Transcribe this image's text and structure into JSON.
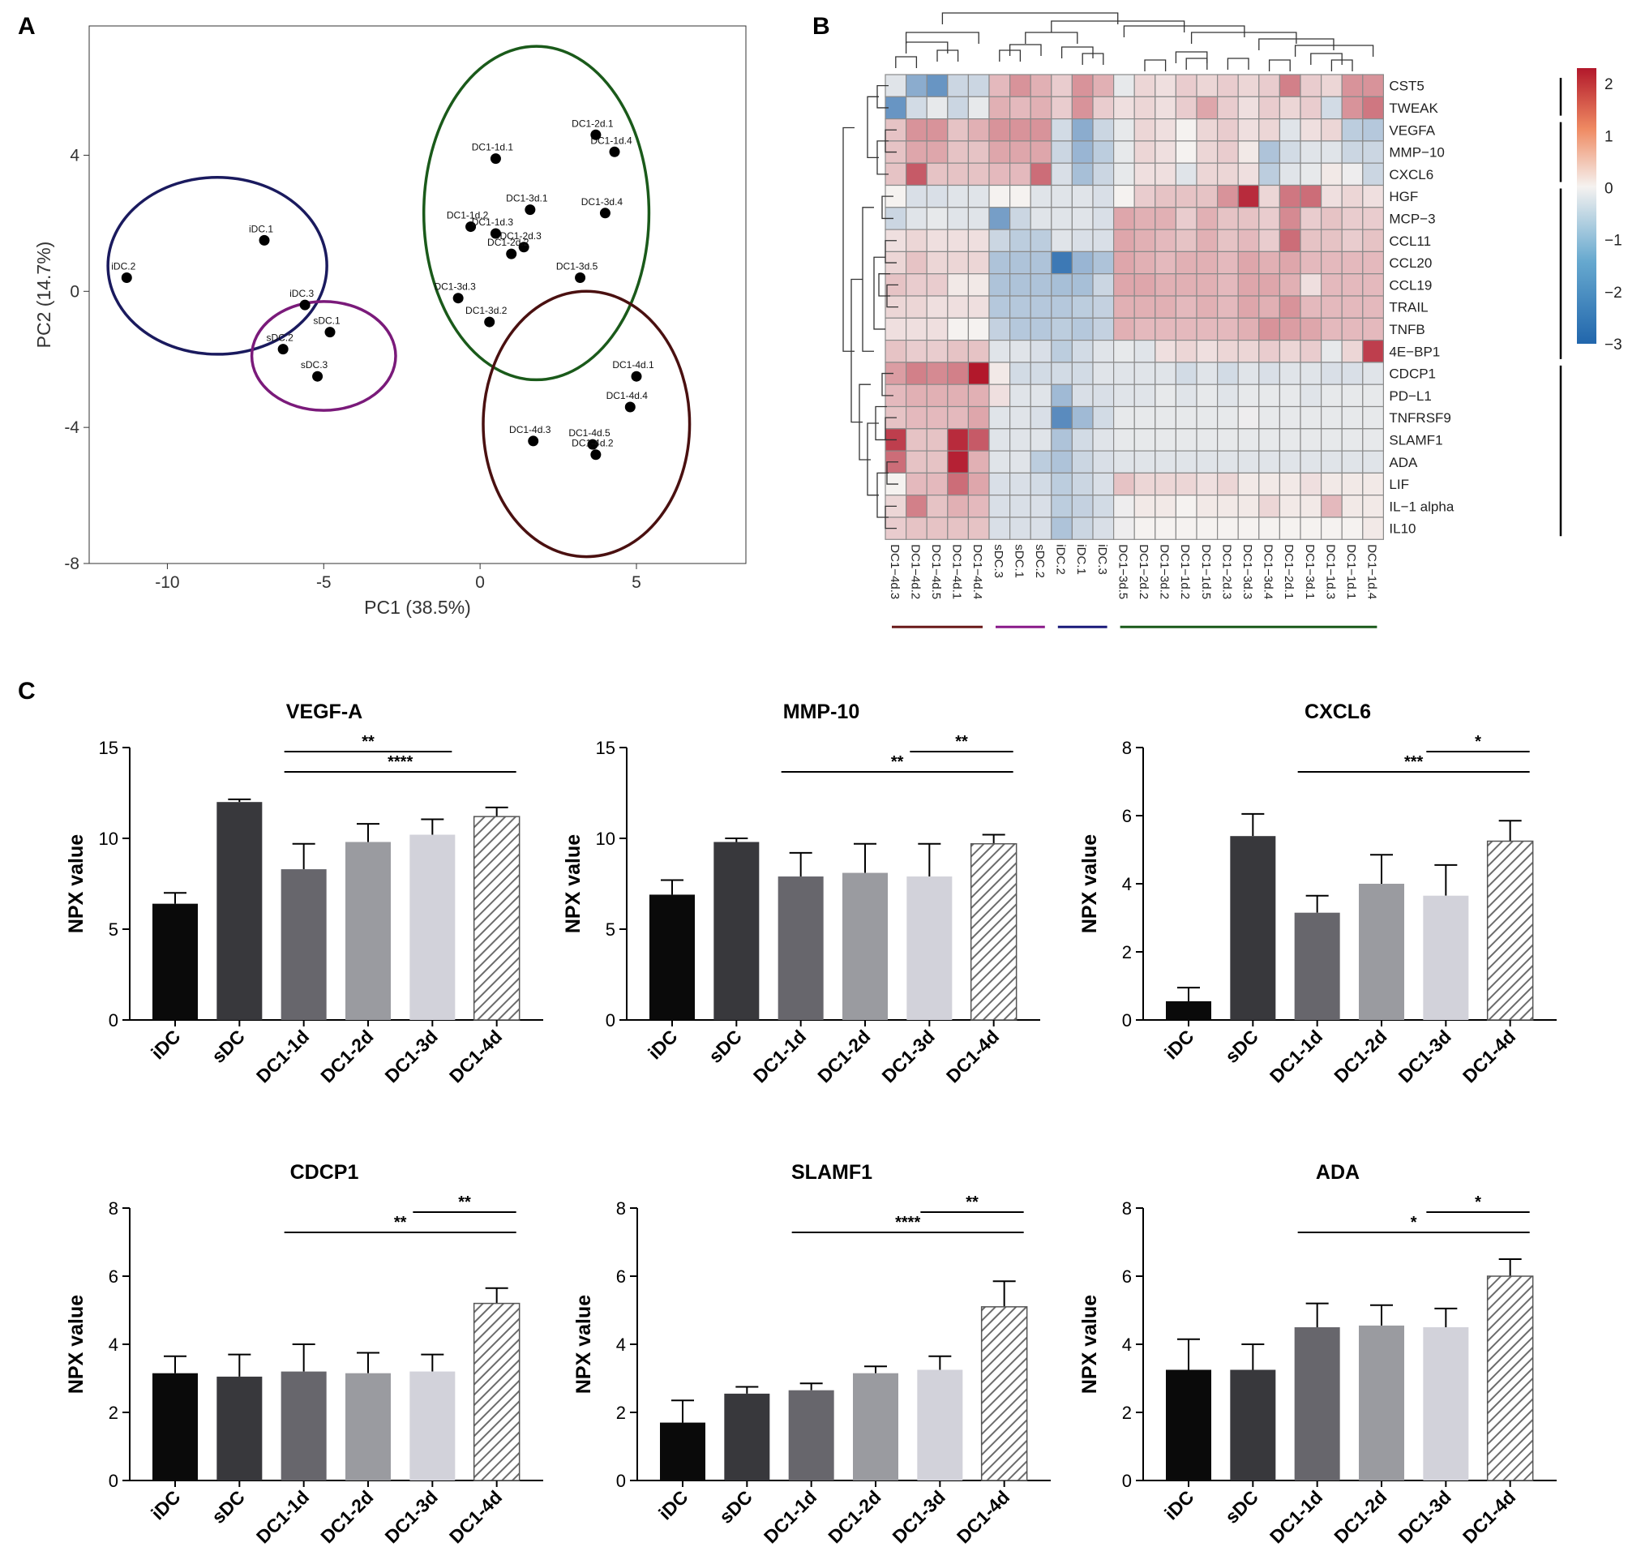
{
  "panel_labels": {
    "a": "A",
    "b": "B",
    "c": "C"
  },
  "chart_data": [
    {
      "id": "A",
      "type": "scatter",
      "xlabel": "PC1 (38.5%)",
      "ylabel": "PC2 (14.7%)",
      "xlim": [
        -12.5,
        8.5
      ],
      "ylim": [
        -8,
        7.8
      ],
      "xticks": [
        -10,
        -5,
        0,
        5
      ],
      "yticks": [
        -8,
        -4,
        0,
        4
      ],
      "points": [
        {
          "label": "iDC.2",
          "x": -11.3,
          "y": 0.4
        },
        {
          "label": "iDC.1",
          "x": -6.9,
          "y": 1.5
        },
        {
          "label": "iDC.3",
          "x": -5.6,
          "y": -0.4
        },
        {
          "label": "sDC.1",
          "x": -4.8,
          "y": -1.2
        },
        {
          "label": "sDC.2",
          "x": -6.3,
          "y": -1.7
        },
        {
          "label": "sDC.3",
          "x": -5.2,
          "y": -2.5
        },
        {
          "label": "DC1-1d.1",
          "x": 0.5,
          "y": 3.9
        },
        {
          "label": "DC1-1d.2",
          "x": -0.3,
          "y": 1.9
        },
        {
          "label": "DC1-1d.3",
          "x": 0.5,
          "y": 1.7
        },
        {
          "label": "DC1-1d.4",
          "x": 4.3,
          "y": 4.1
        },
        {
          "label": "DC1-2d.1",
          "x": 3.7,
          "y": 4.6
        },
        {
          "label": "DC1-2d.3",
          "x": 1.4,
          "y": 1.3
        },
        {
          "label": "DC1-2d.2",
          "x": 1.0,
          "y": 1.1
        },
        {
          "label": "DC1-3d.1",
          "x": 1.6,
          "y": 2.4
        },
        {
          "label": "DC1-3d.2",
          "x": 0.3,
          "y": -0.9
        },
        {
          "label": "DC1-3d.3",
          "x": -0.7,
          "y": -0.2
        },
        {
          "label": "DC1-3d.4",
          "x": 4.0,
          "y": 2.3
        },
        {
          "label": "DC1-3d.5",
          "x": 3.2,
          "y": 0.4
        },
        {
          "label": "DC1-4d.1",
          "x": 5.0,
          "y": -2.5
        },
        {
          "label": "DC1-4d.3",
          "x": 1.7,
          "y": -4.4
        },
        {
          "label": "DC1-4d.4",
          "x": 4.8,
          "y": -3.4
        },
        {
          "label": "DC1-4d.5",
          "x": 3.6,
          "y": -4.5
        },
        {
          "label": "DC1-4d.2",
          "x": 3.7,
          "y": -4.8
        }
      ],
      "ellipses": [
        {
          "group": "iDC",
          "color": "#1a1a5e",
          "cx": -8.4,
          "cy": 0.75,
          "rx": 3.5,
          "ry": 2.6
        },
        {
          "group": "sDC",
          "color": "#7a1a7a",
          "cx": -5.0,
          "cy": -1.9,
          "rx": 2.3,
          "ry": 1.6
        },
        {
          "group": "DC1-1d/2d/3d",
          "color": "#1a5a1a",
          "cx": 1.8,
          "cy": 2.3,
          "rx": 3.6,
          "ry": 4.9
        },
        {
          "group": "DC1-4d",
          "color": "#4a1010",
          "cx": 3.4,
          "cy": -3.9,
          "rx": 3.3,
          "ry": 3.9
        }
      ]
    },
    {
      "id": "B",
      "type": "heatmap",
      "colorbar": {
        "min": -3,
        "max": 2.3,
        "ticks": [
          2,
          1,
          0,
          -1,
          -2,
          -3
        ],
        "tick_labels": [
          "2",
          "1",
          "0",
          "−1",
          "−2",
          "−3"
        ]
      },
      "rows": [
        "CST5",
        "TWEAK",
        "VEGFA",
        "MMP−10",
        "CXCL6",
        "HGF",
        "MCP−3",
        "CCL11",
        "CCL20",
        "CCL19",
        "TRAIL",
        "TNFB",
        "4E−BP1",
        "CDCP1",
        "PD−L1",
        "TNFRSF9",
        "SLAMF1",
        "ADA",
        "LIF",
        "IL−1 alpha",
        "IL10"
      ],
      "columns": [
        "DC1−4d.3",
        "DC1−4d.2",
        "DC1−4d.5",
        "DC1−4d.1",
        "DC1−4d.4",
        "sDC.3",
        "sDC.1",
        "sDC.2",
        "iDC.2",
        "iDC.1",
        "iDC.3",
        "DC1−3d.5",
        "DC1−2d.2",
        "DC1−3d.2",
        "DC1−1d.2",
        "DC1−1d.5",
        "DC1−2d.3",
        "DC1−3d.3",
        "DC1−3d.4",
        "DC1−2d.1",
        "DC1−3d.1",
        "DC1−1d.3",
        "DC1−1d.1",
        "DC1−1d.4"
      ],
      "values": [
        [
          -0.3,
          -1.5,
          -2.0,
          -0.6,
          -0.6,
          0.6,
          1.0,
          0.7,
          0.4,
          1.0,
          0.7,
          -0.2,
          0.3,
          0.2,
          0.4,
          0.3,
          0.4,
          0.3,
          0.4,
          1.2,
          0.4,
          0.3,
          1.0,
          1.0
        ],
        [
          -2.0,
          -0.5,
          -0.2,
          -0.6,
          -0.2,
          0.7,
          0.6,
          0.7,
          0.4,
          1.0,
          0.4,
          0.2,
          0.3,
          0.2,
          0.4,
          0.8,
          0.4,
          0.2,
          0.4,
          0.3,
          0.4,
          -0.5,
          1.0,
          1.3
        ],
        [
          0.5,
          1.0,
          1.0,
          0.5,
          0.7,
          1.0,
          1.0,
          1.0,
          -0.5,
          -1.5,
          -0.6,
          -0.2,
          0.3,
          0.2,
          0.0,
          0.3,
          0.4,
          0.2,
          0.3,
          -0.3,
          0.2,
          0.3,
          -0.8,
          -0.9
        ],
        [
          0.5,
          0.8,
          0.8,
          0.5,
          0.5,
          0.8,
          0.8,
          0.8,
          -0.6,
          -1.3,
          -0.8,
          -0.2,
          0.3,
          0.2,
          0.0,
          0.3,
          0.4,
          0.1,
          -1.0,
          -0.5,
          -0.3,
          -0.3,
          -0.6,
          -0.6
        ],
        [
          0.5,
          1.6,
          0.5,
          0.5,
          0.5,
          0.6,
          0.6,
          1.4,
          -0.4,
          -1.1,
          -0.6,
          -0.2,
          0.2,
          0.2,
          -0.3,
          0.3,
          0.3,
          0.2,
          -0.8,
          -0.3,
          -0.2,
          0.1,
          -0.1,
          -0.6
        ],
        [
          0.0,
          -0.4,
          -0.4,
          -0.3,
          -0.3,
          0.0,
          0.0,
          -0.3,
          -0.3,
          -0.3,
          -0.4,
          0.0,
          0.4,
          0.5,
          0.5,
          0.5,
          1.0,
          2.1,
          0.3,
          1.3,
          1.4,
          0.2,
          0.3,
          0.2
        ],
        [
          -0.6,
          -0.3,
          -0.2,
          -0.3,
          -0.3,
          -1.8,
          -0.6,
          -0.3,
          -0.3,
          -0.3,
          -0.4,
          0.8,
          0.7,
          0.7,
          0.4,
          0.7,
          0.5,
          0.5,
          0.4,
          1.1,
          0.4,
          0.5,
          0.4,
          0.4
        ],
        [
          0.2,
          0.3,
          0.2,
          0.2,
          0.2,
          -0.6,
          -0.8,
          -0.8,
          -0.3,
          -0.4,
          -0.4,
          0.8,
          0.7,
          0.6,
          0.5,
          0.7,
          0.5,
          0.6,
          0.4,
          1.4,
          0.5,
          0.5,
          0.4,
          0.5
        ],
        [
          0.3,
          0.5,
          0.3,
          0.3,
          0.3,
          -1.0,
          -1.0,
          -1.0,
          -2.6,
          -1.3,
          -1.0,
          0.8,
          0.7,
          0.6,
          0.7,
          0.7,
          0.6,
          0.8,
          0.7,
          0.8,
          0.6,
          0.6,
          0.6,
          0.6
        ],
        [
          0.5,
          0.4,
          0.4,
          0.1,
          0.1,
          -1.0,
          -1.0,
          -1.0,
          -1.1,
          -1.1,
          -0.6,
          0.8,
          0.8,
          0.7,
          0.7,
          0.7,
          0.6,
          0.8,
          0.8,
          0.7,
          0.2,
          0.6,
          0.6,
          0.6
        ],
        [
          0.3,
          0.3,
          0.2,
          0.2,
          0.2,
          -0.9,
          -0.9,
          -0.9,
          -0.9,
          -0.8,
          -0.7,
          0.7,
          0.7,
          0.7,
          0.6,
          0.7,
          0.6,
          0.8,
          0.7,
          1.0,
          0.6,
          0.6,
          0.6,
          0.6
        ],
        [
          0.2,
          0.2,
          0.2,
          0.0,
          0.0,
          -0.7,
          -0.9,
          -0.9,
          -0.8,
          -0.9,
          -0.7,
          0.7,
          0.6,
          0.6,
          0.6,
          0.6,
          0.6,
          0.7,
          1.0,
          0.9,
          0.8,
          0.6,
          0.6,
          0.6
        ],
        [
          0.5,
          0.4,
          0.4,
          0.5,
          0.5,
          -0.3,
          -0.3,
          -0.4,
          -0.8,
          -0.5,
          -0.3,
          -0.2,
          -0.3,
          0.2,
          0.3,
          0.2,
          0.3,
          0.3,
          0.4,
          0.3,
          0.4,
          -0.2,
          0.3,
          1.9
        ],
        [
          0.9,
          1.2,
          1.1,
          1.2,
          2.6,
          0.1,
          -0.5,
          -0.5,
          -0.5,
          -0.5,
          -0.3,
          -0.3,
          -0.3,
          -0.3,
          -0.5,
          -0.3,
          -0.5,
          -0.3,
          -0.4,
          -0.3,
          -0.3,
          -0.4,
          -0.4,
          -0.3
        ],
        [
          0.6,
          0.7,
          0.7,
          0.7,
          0.7,
          0.2,
          -0.3,
          -0.3,
          -1.2,
          -0.4,
          -0.4,
          -0.3,
          -0.3,
          -0.2,
          -0.3,
          -0.2,
          -0.3,
          -0.2,
          -0.2,
          -0.2,
          -0.3,
          -0.2,
          -0.2,
          -0.2
        ],
        [
          0.5,
          0.6,
          0.6,
          0.6,
          0.8,
          -0.3,
          -0.3,
          -0.4,
          -2.2,
          -1.2,
          -0.5,
          -0.2,
          -0.2,
          -0.2,
          -0.2,
          -0.2,
          -0.2,
          -0.1,
          -0.2,
          -0.2,
          -0.2,
          -0.2,
          -0.2,
          -0.2
        ],
        [
          1.9,
          0.5,
          0.5,
          2.1,
          1.6,
          -0.3,
          -0.3,
          -0.3,
          -1.0,
          -0.5,
          -0.3,
          -0.2,
          -0.2,
          -0.2,
          -0.2,
          -0.2,
          -0.2,
          -0.2,
          -0.2,
          -0.2,
          -0.2,
          -0.2,
          -0.2,
          -0.2
        ],
        [
          1.4,
          0.5,
          0.5,
          2.2,
          0.7,
          -0.3,
          -0.3,
          -0.8,
          -1.0,
          -0.6,
          -0.4,
          -0.3,
          -0.3,
          -0.3,
          -0.3,
          -0.3,
          -0.3,
          -0.3,
          -0.3,
          -0.3,
          -0.3,
          -0.3,
          -0.3,
          -0.3
        ],
        [
          0.0,
          0.6,
          0.6,
          1.4,
          0.8,
          -0.4,
          -0.4,
          -0.5,
          -0.8,
          -0.6,
          -0.4,
          0.5,
          0.3,
          0.3,
          0.3,
          0.2,
          0.3,
          0.1,
          0.1,
          0.1,
          0.2,
          0.1,
          0.1,
          0.1
        ],
        [
          0.3,
          1.2,
          0.5,
          0.7,
          0.6,
          -0.4,
          -0.4,
          -0.4,
          -0.8,
          -0.7,
          -0.5,
          -0.1,
          0.1,
          0.1,
          0.0,
          0.1,
          0.1,
          0.1,
          0.3,
          0.1,
          0.1,
          0.6,
          0.1,
          0.1
        ],
        [
          0.4,
          0.5,
          0.5,
          0.5,
          0.5,
          -0.4,
          -0.4,
          -0.4,
          -1.0,
          -0.6,
          -0.4,
          -0.1,
          0.0,
          0.0,
          0.0,
          0.0,
          0.0,
          0.0,
          0.0,
          0.0,
          0.0,
          0.0,
          0.0,
          0.1
        ]
      ],
      "column_groups": [
        {
          "color": "#6a1a1a",
          "from": 0,
          "to": 4
        },
        {
          "color": "#8a1a8a",
          "from": 5,
          "to": 7
        },
        {
          "color": "#1a1a7a",
          "from": 8,
          "to": 10
        },
        {
          "color": "#1a5a1a",
          "from": 11,
          "to": 23
        }
      ],
      "row_groups": [
        [
          0,
          1
        ],
        [
          2,
          4
        ],
        [
          5,
          12
        ],
        [
          13,
          20
        ]
      ]
    },
    {
      "id": "C1",
      "type": "bar",
      "title": "VEGF-A",
      "ylabel": "NPX value",
      "categories": [
        "iDC",
        "sDC",
        "DC1-1d",
        "DC1-2d",
        "DC1-3d",
        "DC1-4d"
      ],
      "values": [
        6.4,
        12.0,
        8.3,
        9.8,
        10.2,
        11.2
      ],
      "errors": [
        0.6,
        0.15,
        1.4,
        1.0,
        0.85,
        0.5
      ],
      "ylim": [
        0,
        15
      ],
      "yticks": [
        0,
        5,
        10,
        15
      ],
      "brackets": [
        {
          "from": 2,
          "to": 4,
          "label": "**"
        },
        {
          "from": 2,
          "to": 5,
          "label": "****"
        }
      ]
    },
    {
      "id": "C2",
      "type": "bar",
      "title": "MMP-10",
      "ylabel": "NPX value",
      "categories": [
        "iDC",
        "sDC",
        "DC1-1d",
        "DC1-2d",
        "DC1-3d",
        "DC1-4d"
      ],
      "values": [
        6.9,
        9.8,
        7.9,
        8.1,
        7.9,
        9.7
      ],
      "errors": [
        0.8,
        0.2,
        1.3,
        1.6,
        1.8,
        0.5
      ],
      "ylim": [
        0,
        15
      ],
      "yticks": [
        0,
        5,
        10,
        15
      ],
      "brackets": [
        {
          "from": 4,
          "to": 5,
          "label": "**"
        },
        {
          "from": 2,
          "to": 5,
          "label": "**"
        }
      ]
    },
    {
      "id": "C3",
      "type": "bar",
      "title": "CXCL6",
      "ylabel": "NPX value",
      "categories": [
        "iDC",
        "sDC",
        "DC1-1d",
        "DC1-2d",
        "DC1-3d",
        "DC1-4d"
      ],
      "values": [
        0.55,
        5.4,
        3.15,
        4.0,
        3.65,
        5.25
      ],
      "errors": [
        0.4,
        0.65,
        0.5,
        0.85,
        0.9,
        0.6
      ],
      "ylim": [
        0,
        8
      ],
      "yticks": [
        0,
        2,
        4,
        6,
        8
      ],
      "brackets": [
        {
          "from": 4,
          "to": 5,
          "label": "*"
        },
        {
          "from": 2,
          "to": 5,
          "label": "***"
        }
      ]
    },
    {
      "id": "C4",
      "type": "bar",
      "title": "CDCP1",
      "ylabel": "NPX value",
      "categories": [
        "iDC",
        "sDC",
        "DC1-1d",
        "DC1-2d",
        "DC1-3d",
        "DC1-4d"
      ],
      "values": [
        3.15,
        3.05,
        3.2,
        3.15,
        3.2,
        5.2
      ],
      "errors": [
        0.5,
        0.65,
        0.8,
        0.6,
        0.5,
        0.45
      ],
      "ylim": [
        0,
        8
      ],
      "yticks": [
        0,
        2,
        4,
        6,
        8
      ],
      "brackets": [
        {
          "from": 4,
          "to": 5,
          "label": "**"
        },
        {
          "from": 2,
          "to": 5,
          "label": "**"
        }
      ]
    },
    {
      "id": "C5",
      "type": "bar",
      "title": "SLAMF1",
      "ylabel": "NPX value",
      "categories": [
        "iDC",
        "sDC",
        "DC1-1d",
        "DC1-2d",
        "DC1-3d",
        "DC1-4d"
      ],
      "values": [
        1.7,
        2.55,
        2.65,
        3.15,
        3.25,
        5.1
      ],
      "errors": [
        0.65,
        0.2,
        0.2,
        0.2,
        0.4,
        0.75
      ],
      "ylim": [
        0,
        8
      ],
      "yticks": [
        0,
        2,
        4,
        6,
        8
      ],
      "brackets": [
        {
          "from": 4,
          "to": 5,
          "label": "**"
        },
        {
          "from": 2,
          "to": 5,
          "label": "****"
        }
      ]
    },
    {
      "id": "C6",
      "type": "bar",
      "title": "ADA",
      "ylabel": "NPX value",
      "categories": [
        "iDC",
        "sDC",
        "DC1-1d",
        "DC1-2d",
        "DC1-3d",
        "DC1-4d"
      ],
      "values": [
        3.25,
        3.25,
        4.5,
        4.55,
        4.5,
        6.0
      ],
      "errors": [
        0.9,
        0.75,
        0.7,
        0.6,
        0.55,
        0.5
      ],
      "ylim": [
        0,
        8
      ],
      "yticks": [
        0,
        2,
        4,
        6,
        8
      ],
      "brackets": [
        {
          "from": 4,
          "to": 5,
          "label": "*"
        },
        {
          "from": 2,
          "to": 5,
          "label": "*"
        }
      ]
    }
  ],
  "bar_fills": [
    "#0a0a0a",
    "#38383c",
    "#67666c",
    "#9a9ba0",
    "#d2d2da",
    "hatch"
  ],
  "palette": {
    "heat_high": "#b2182b",
    "heat_mid": "#f5f2f0",
    "heat_low": "#2166ac",
    "cell_border": "#8a8a8a",
    "axis": "#000000"
  }
}
